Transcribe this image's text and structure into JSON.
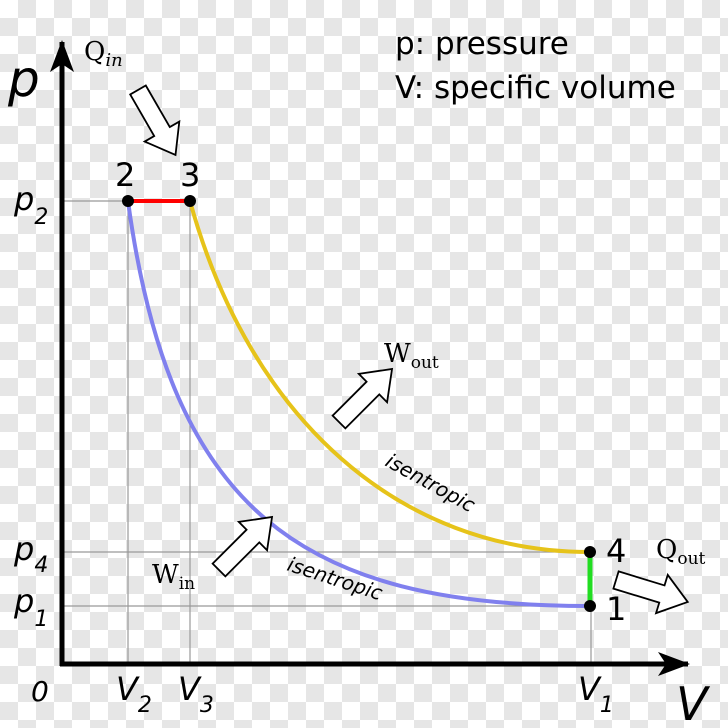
{
  "legend": {
    "line1": "p: pressure",
    "line2": "V: specific volume"
  },
  "axes": {
    "y_symbol": "p",
    "x_symbol": "V",
    "origin": "0"
  },
  "pressure_ticks": {
    "p2": {
      "base": "p",
      "sub": "2"
    },
    "p4": {
      "base": "p",
      "sub": "4"
    },
    "p1": {
      "base": "p",
      "sub": "1"
    }
  },
  "volume_ticks": {
    "v2": {
      "base": "V",
      "sub": "2"
    },
    "v3": {
      "base": "V",
      "sub": "3"
    },
    "v1": {
      "base": "V",
      "sub": "1"
    }
  },
  "states": {
    "s1": "1",
    "s2": "2",
    "s3": "3",
    "s4": "4"
  },
  "heat": {
    "in": {
      "base": "Q",
      "sub": "in"
    },
    "out": {
      "base": "Q",
      "sub": "out"
    }
  },
  "work": {
    "in": {
      "base": "W",
      "sub": "in"
    },
    "out": {
      "base": "W",
      "sub": "out"
    }
  },
  "process_labels": {
    "compression": "isentropic",
    "expansion": "isentropic"
  },
  "colors": {
    "heat_addition": "#ff0000",
    "expansion": "#e6c31a",
    "heat_rejection": "#22dd22",
    "compression": "#8080ee",
    "guides": "#999999",
    "axes": "#000000"
  }
}
